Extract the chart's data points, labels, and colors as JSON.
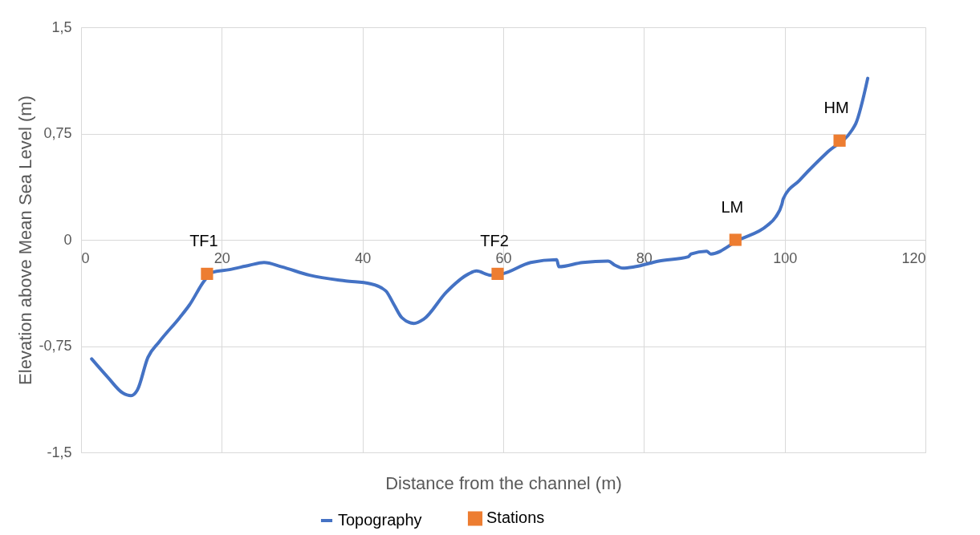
{
  "chart_data": {
    "type": "line",
    "xlabel": "Distance from the channel (m)",
    "ylabel": "Elevation above Mean Sea Level (m)",
    "xlim": [
      0,
      120
    ],
    "xticks": [
      0,
      20,
      40,
      60,
      80,
      100,
      120
    ],
    "ylim": [
      -1.5,
      1.5
    ],
    "yticks": [
      {
        "value": -1.5,
        "label": "-1,5"
      },
      {
        "value": -0.75,
        "label": "-0,75"
      },
      {
        "value": 0,
        "label": "0"
      },
      {
        "value": 0.75,
        "label": "0,75"
      },
      {
        "value": 1.5,
        "label": "1,5"
      }
    ],
    "grid": true,
    "legend": "bottom",
    "series": [
      {
        "name": "Topography",
        "type": "line",
        "color": "#4472c4",
        "marker": "none",
        "line_style": "solid",
        "x": [
          1.5,
          3.8,
          5.9,
          7.1,
          8.0,
          9.5,
          11.1,
          14.0,
          15.4,
          17.5,
          18.6,
          21.1,
          23.9,
          26.0,
          28.5,
          32.5,
          37.6,
          41.1,
          43.3,
          44.5,
          45.6,
          47.3,
          48.7,
          51.9,
          55.1,
          56.2,
          58.2,
          59.9,
          63.9,
          67.6,
          67.9,
          71.3,
          74.9,
          75.9,
          77.0,
          78.7,
          82.1,
          86.3,
          86.7,
          88.9,
          89.5,
          93.5,
          97.5,
          98.7,
          99.6,
          99.8,
          102.1,
          106.1,
          109.5,
          110.1,
          111.8
        ],
        "values": [
          -0.84,
          -0.97,
          -1.08,
          -1.1,
          -1.06,
          -0.83,
          -0.72,
          -0.55,
          -0.46,
          -0.29,
          -0.23,
          -0.21,
          -0.18,
          -0.16,
          -0.19,
          -0.25,
          -0.29,
          -0.31,
          -0.36,
          -0.46,
          -0.55,
          -0.59,
          -0.56,
          -0.37,
          -0.24,
          -0.22,
          -0.25,
          -0.24,
          -0.16,
          -0.14,
          -0.19,
          -0.16,
          -0.15,
          -0.18,
          -0.2,
          -0.19,
          -0.15,
          -0.12,
          -0.1,
          -0.08,
          -0.1,
          0.0,
          0.1,
          0.16,
          0.25,
          0.29,
          0.42,
          0.62,
          0.77,
          0.82,
          1.14
        ]
      },
      {
        "name": "Stations",
        "type": "scatter",
        "color": "#ed7d31",
        "marker": "square",
        "x": [
          17.9,
          59.2,
          93.0,
          107.8
        ],
        "values": [
          -0.24,
          -0.24,
          0.0,
          0.7
        ]
      }
    ],
    "annotations": [
      {
        "text": "TF1",
        "x": 17.9,
        "y": -0.24
      },
      {
        "text": "TF2",
        "x": 59.2,
        "y": -0.24
      },
      {
        "text": "LM",
        "x": 93.0,
        "y": 0.0
      },
      {
        "text": "HM",
        "x": 107.8,
        "y": 0.7
      }
    ]
  }
}
